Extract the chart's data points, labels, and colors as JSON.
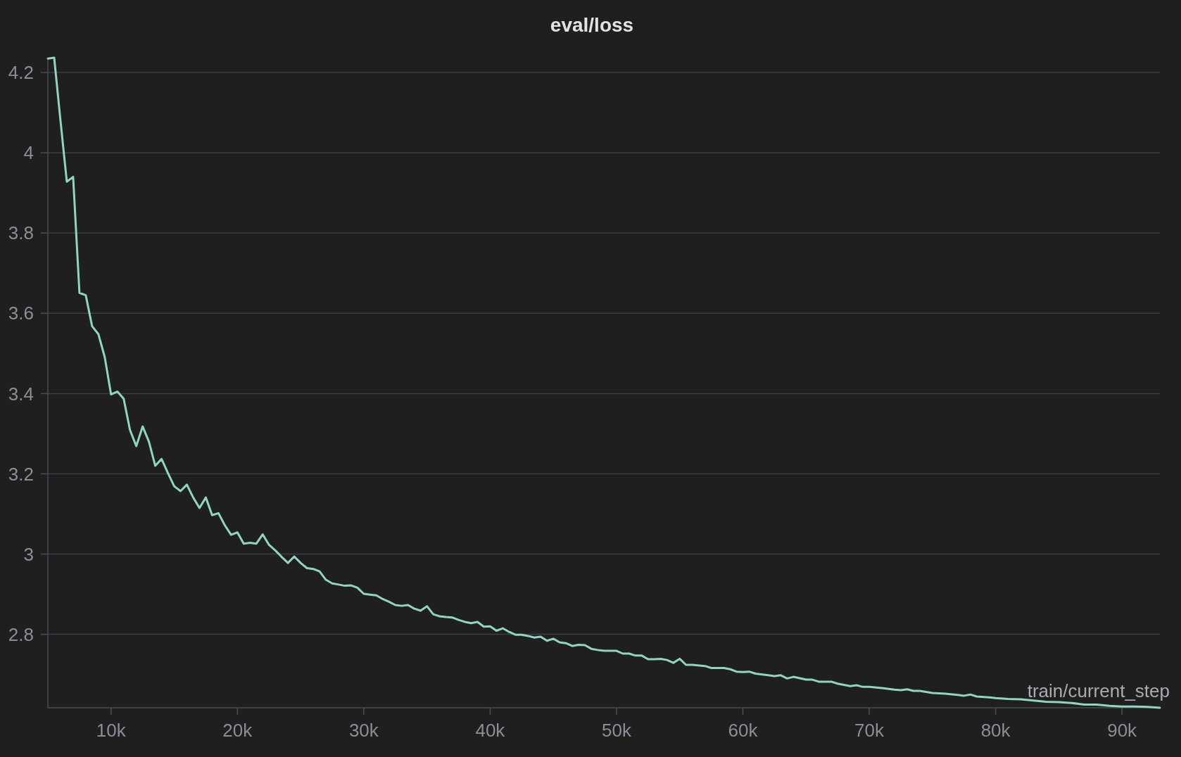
{
  "chart_data": {
    "type": "line",
    "title": "eval/loss",
    "xlabel": "train/current_step",
    "color": "#8fd5c2",
    "x": [
      5000,
      5500,
      6000,
      6500,
      7000,
      7500,
      8000,
      8500,
      9000,
      9500,
      10000,
      10500,
      11000,
      11500,
      12000,
      12500,
      13000,
      13500,
      14000,
      14500,
      15000,
      15500,
      16000,
      16500,
      17000,
      17500,
      18000,
      18500,
      19000,
      19500,
      20000,
      20500,
      21000,
      21500,
      22000,
      22500,
      23000,
      23500,
      24000,
      24500,
      25000,
      25500,
      26000,
      26500,
      27000,
      27500,
      28000,
      28500,
      29000,
      29500,
      30000,
      30500,
      31000,
      31500,
      32000,
      32500,
      33000,
      33500,
      34000,
      34500,
      35000,
      35500,
      36000,
      36500,
      37000,
      37500,
      38000,
      38500,
      39000,
      39500,
      40000,
      40500,
      41000,
      41500,
      42000,
      42500,
      43000,
      43500,
      44000,
      44500,
      45000,
      45500,
      46000,
      46500,
      47000,
      47500,
      48000,
      48500,
      49000,
      50000,
      50500,
      51000,
      51500,
      52000,
      52500,
      53000,
      53500,
      54000,
      54500,
      55000,
      55500,
      56000,
      57000,
      57500,
      58500,
      59000,
      59500,
      60000,
      60500,
      61000,
      62000,
      62500,
      63000,
      63500,
      64000,
      65000,
      65500,
      66000,
      67000,
      67500,
      68500,
      69000,
      69500,
      70000,
      71000,
      72000,
      72500,
      73000,
      73500,
      74000,
      75000,
      76000,
      77000,
      77500,
      78000,
      78500,
      79500,
      80000,
      81000,
      82000,
      83000,
      84000,
      85000,
      86000,
      87000,
      88000,
      89000,
      90000,
      91000,
      92000,
      93000
    ],
    "values": [
      4.235,
      4.237,
      4.08,
      3.928,
      3.94,
      3.651,
      3.645,
      3.568,
      3.548,
      3.491,
      3.398,
      3.405,
      3.387,
      3.309,
      3.269,
      3.318,
      3.28,
      3.22,
      3.237,
      3.202,
      3.169,
      3.157,
      3.173,
      3.141,
      3.115,
      3.141,
      3.097,
      3.102,
      3.072,
      3.048,
      3.054,
      3.026,
      3.028,
      3.026,
      3.049,
      3.023,
      3.009,
      2.993,
      2.978,
      2.994,
      2.978,
      2.965,
      2.963,
      2.957,
      2.936,
      2.927,
      2.924,
      2.921,
      2.922,
      2.916,
      2.901,
      2.899,
      2.897,
      2.888,
      2.881,
      2.873,
      2.871,
      2.873,
      2.864,
      2.859,
      2.87,
      2.85,
      2.845,
      2.843,
      2.842,
      2.836,
      2.831,
      2.828,
      2.831,
      2.819,
      2.82,
      2.809,
      2.815,
      2.806,
      2.799,
      2.799,
      2.796,
      2.792,
      2.794,
      2.784,
      2.789,
      2.78,
      2.778,
      2.771,
      2.774,
      2.773,
      2.764,
      2.761,
      2.759,
      2.759,
      2.752,
      2.752,
      2.747,
      2.747,
      2.738,
      2.738,
      2.739,
      2.736,
      2.729,
      2.739,
      2.724,
      2.724,
      2.721,
      2.716,
      2.716,
      2.713,
      2.707,
      2.706,
      2.707,
      2.702,
      2.698,
      2.696,
      2.698,
      2.69,
      2.694,
      2.687,
      2.687,
      2.682,
      2.682,
      2.677,
      2.671,
      2.673,
      2.669,
      2.669,
      2.666,
      2.662,
      2.661,
      2.663,
      2.659,
      2.659,
      2.654,
      2.652,
      2.649,
      2.647,
      2.65,
      2.645,
      2.643,
      2.641,
      2.639,
      2.638,
      2.635,
      2.632,
      2.631,
      2.629,
      2.625,
      2.625,
      2.622,
      2.62,
      2.62,
      2.619,
      2.617
    ],
    "xlim": [
      5000,
      93000
    ],
    "ylim": [
      2.617,
      4.237
    ],
    "xticks": [
      {
        "value": 10000,
        "label": "10k"
      },
      {
        "value": 20000,
        "label": "20k"
      },
      {
        "value": 30000,
        "label": "30k"
      },
      {
        "value": 40000,
        "label": "40k"
      },
      {
        "value": 50000,
        "label": "50k"
      },
      {
        "value": 60000,
        "label": "60k"
      },
      {
        "value": 70000,
        "label": "70k"
      },
      {
        "value": 80000,
        "label": "80k"
      },
      {
        "value": 90000,
        "label": "90k"
      }
    ],
    "yticks": [
      2.8,
      3,
      3.2,
      3.4,
      3.6,
      3.8,
      4,
      4.2
    ],
    "grid": "y"
  }
}
